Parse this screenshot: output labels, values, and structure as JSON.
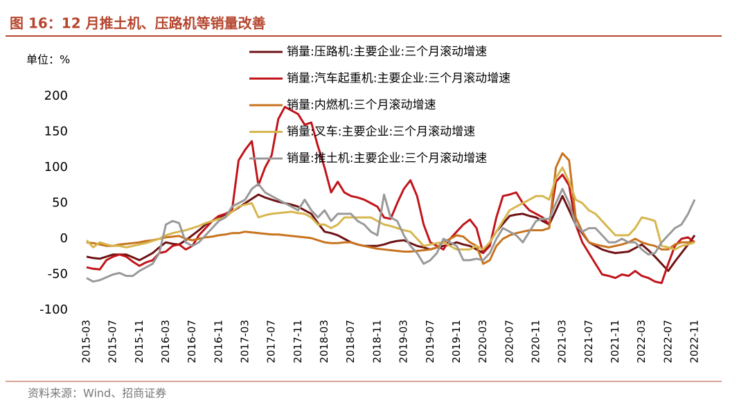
{
  "chart_data": {
    "type": "line",
    "title": "图 16：12 月推土机、压路机等销量改善",
    "unit": "单位：%",
    "source": "资料来源：Wind、招商证券",
    "categories": [
      "2015-03",
      null,
      null,
      null,
      "2015-07",
      null,
      null,
      null,
      "2015-11",
      null,
      null,
      null,
      "2016-03",
      null,
      null,
      null,
      "2016-07",
      null,
      null,
      null,
      "2016-11",
      null,
      null,
      null,
      "2017-03",
      null,
      null,
      null,
      "2017-07",
      null,
      null,
      null,
      "2017-11",
      null,
      null,
      null,
      "2018-03",
      null,
      null,
      null,
      "2018-07",
      null,
      null,
      null,
      "2018-11",
      null,
      null,
      null,
      "2019-03",
      null,
      null,
      null,
      "2019-07",
      null,
      null,
      null,
      "2019-11",
      null,
      null,
      null,
      "2020-03",
      null,
      null,
      null,
      "2020-07",
      null,
      null,
      null,
      "2020-11",
      null,
      null,
      null,
      "2021-03",
      null,
      null,
      null,
      "2021-07",
      null,
      null,
      null,
      "2021-11",
      null,
      null,
      null,
      "2022-03",
      null,
      null,
      null,
      "2022-07",
      null,
      null,
      null,
      "2022-11"
    ],
    "series": [
      {
        "name": "销量:压路机:主要企业:三个月滚动增速",
        "color": "#6e1214",
        "values": [
          -25,
          -27,
          -28,
          -25,
          -22,
          -22,
          -22,
          -26,
          -30,
          -25,
          -20,
          -12,
          -5,
          -7,
          -8,
          -2,
          5,
          12,
          20,
          25,
          30,
          34,
          38,
          44,
          50,
          56,
          62,
          58,
          55,
          52,
          50,
          48,
          45,
          40,
          35,
          22,
          10,
          8,
          5,
          0,
          -5,
          -8,
          -10,
          -10,
          -10,
          -8,
          -5,
          -3,
          -2,
          -6,
          -10,
          -12,
          -15,
          -12,
          -10,
          -8,
          -5,
          -8,
          -10,
          -15,
          -20,
          -5,
          10,
          21,
          32,
          34,
          35,
          32,
          30,
          25,
          20,
          40,
          60,
          40,
          20,
          8,
          -5,
          -10,
          -15,
          -18,
          -20,
          -19,
          -18,
          -13,
          -8,
          -16,
          -25,
          -35,
          -45,
          -32,
          -20,
          -8,
          5
        ]
      },
      {
        "name": "销量:汽车起重机:主要企业:三个月滚动增速",
        "color": "#c0141a",
        "values": [
          -40,
          -42,
          -43,
          -30,
          -25,
          -22,
          -25,
          -32,
          -38,
          -33,
          -30,
          -20,
          -18,
          -10,
          -8,
          -15,
          -10,
          5,
          15,
          25,
          32,
          35,
          40,
          110,
          125,
          137,
          75,
          100,
          117,
          168,
          185,
          180,
          175,
          160,
          163,
          130,
          100,
          65,
          80,
          65,
          60,
          58,
          55,
          50,
          45,
          30,
          28,
          50,
          70,
          82,
          60,
          20,
          -5,
          -10,
          -15,
          0,
          10,
          20,
          27,
          15,
          -20,
          -10,
          30,
          60,
          62,
          65,
          50,
          40,
          35,
          30,
          20,
          80,
          90,
          75,
          20,
          -5,
          -20,
          -35,
          -50,
          -52,
          -55,
          -50,
          -52,
          -45,
          -52,
          -55,
          -60,
          -62,
          -35,
          -10,
          0,
          2,
          -5
        ]
      },
      {
        "name": "销量:内燃机:三个月滚动增速",
        "color": "#c8731e",
        "values": [
          -5,
          -6,
          -8,
          -10,
          -10,
          -8,
          -7,
          -6,
          -5,
          -3,
          -2,
          0,
          2,
          3,
          4,
          0,
          -2,
          0,
          2,
          3,
          5,
          6,
          8,
          8,
          10,
          9,
          8,
          7,
          6,
          6,
          5,
          4,
          3,
          2,
          1,
          -2,
          -5,
          -6,
          -6,
          -5,
          -5,
          -8,
          -10,
          -12,
          -14,
          -15,
          -16,
          -17,
          -18,
          -18,
          -17,
          -16,
          -15,
          -12,
          -5,
          0,
          5,
          3,
          -5,
          -10,
          -35,
          -30,
          -10,
          0,
          5,
          8,
          10,
          12,
          12,
          12,
          15,
          100,
          120,
          110,
          30,
          10,
          -5,
          -8,
          -10,
          -12,
          -10,
          -8,
          -5,
          0,
          -5,
          -8,
          -10,
          -15,
          -15,
          -8,
          -5,
          -5,
          -5
        ]
      },
      {
        "name": "销量:叉车:主要企业:三个月滚动增速",
        "color": "#d6b64e",
        "values": [
          -2,
          -12,
          -5,
          -8,
          -10,
          -10,
          -12,
          -10,
          -8,
          -6,
          -3,
          0,
          5,
          8,
          10,
          12,
          15,
          18,
          22,
          25,
          28,
          30,
          38,
          45,
          48,
          50,
          30,
          33,
          35,
          36,
          37,
          38,
          36,
          35,
          30,
          20,
          20,
          15,
          20,
          30,
          30,
          30,
          30,
          30,
          25,
          20,
          18,
          15,
          12,
          10,
          0,
          -10,
          -8,
          -6,
          -5,
          -10,
          -15,
          -15,
          -15,
          -10,
          -15,
          -5,
          10,
          25,
          40,
          45,
          50,
          55,
          60,
          60,
          55,
          85,
          100,
          80,
          55,
          50,
          40,
          35,
          25,
          15,
          5,
          5,
          5,
          15,
          30,
          28,
          25,
          -10,
          -12,
          -15,
          -10,
          -8,
          -5
        ]
      },
      {
        "name": "销量:推土机:主要企业:三个月滚动增速",
        "color": "#999999",
        "values": [
          -55,
          -60,
          -58,
          -54,
          -50,
          -48,
          -52,
          -52,
          -45,
          -40,
          -35,
          -20,
          20,
          25,
          22,
          -5,
          -10,
          -5,
          5,
          15,
          25,
          30,
          45,
          50,
          55,
          70,
          77,
          65,
          60,
          55,
          50,
          45,
          40,
          55,
          40,
          30,
          40,
          25,
          35,
          35,
          35,
          25,
          20,
          10,
          5,
          62,
          30,
          25,
          5,
          -10,
          -20,
          -35,
          -30,
          -20,
          0,
          -5,
          -10,
          -30,
          -30,
          -28,
          -30,
          -20,
          0,
          15,
          10,
          5,
          -5,
          10,
          25,
          28,
          28,
          50,
          70,
          50,
          20,
          10,
          15,
          15,
          5,
          -5,
          -5,
          0,
          -5,
          -5,
          -15,
          -22,
          -20,
          -5,
          5,
          15,
          20,
          35,
          55
        ]
      }
    ],
    "ylim": [
      -100,
      200
    ],
    "yticks": [
      -100,
      -50,
      0,
      50,
      100,
      150,
      200
    ]
  }
}
